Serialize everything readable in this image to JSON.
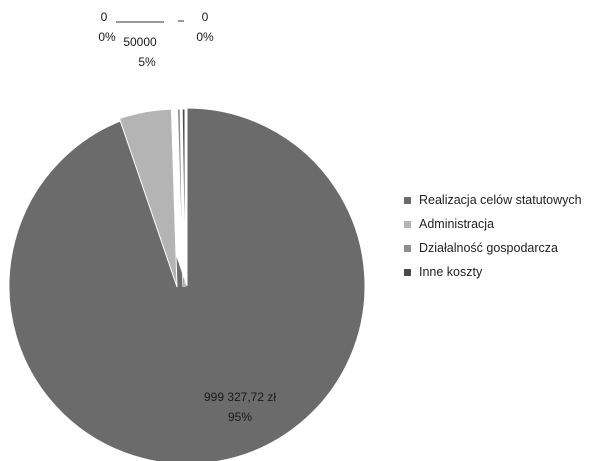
{
  "chart_data": {
    "type": "pie",
    "style": "exploded",
    "title": "",
    "legend_position": "right",
    "slices": [
      {
        "name": "Realizacja celów statutowych",
        "value": 999327.72,
        "value_label": "999 327,72 zł",
        "percent_label": "95%",
        "color": "#6b6b6b"
      },
      {
        "name": "Administracja",
        "value": 50000,
        "value_label": "50000",
        "percent_label": "5%",
        "color": "#b4b4b4"
      },
      {
        "name": "Działalność gospodarcza",
        "value": 0,
        "value_label": "0",
        "percent_label": "0%",
        "color": "#8e8e8e"
      },
      {
        "name": "Inne koszty",
        "value": 0,
        "value_label": "0",
        "percent_label": "0%",
        "color": "#4a4a4a"
      }
    ]
  }
}
